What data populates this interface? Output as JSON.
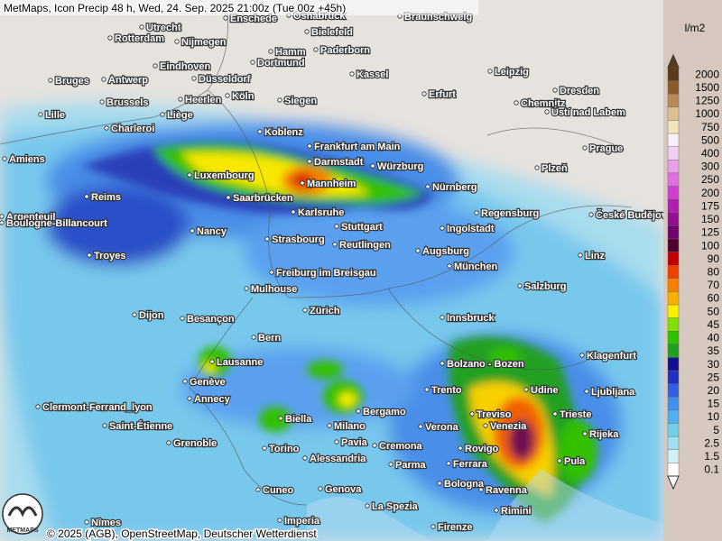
{
  "header": {
    "title": "MetMaps, Icon Precip 48 h, Wed, 24. Sep. 2025 21:00z (Tue 00z +45h)"
  },
  "footer": {
    "copyright": "© 2025 (AGB), OpenStreetMap, Deutscher Wetterdienst",
    "logo": "METMAPS"
  },
  "legend": {
    "unit": "l/m2",
    "labels": [
      "2000",
      "1500",
      "1250",
      "1000",
      "750",
      "500",
      "400",
      "300",
      "250",
      "200",
      "175",
      "150",
      "125",
      "100",
      "90",
      "80",
      "70",
      "60",
      "50",
      "45",
      "40",
      "35",
      "30",
      "25",
      "20",
      "15",
      "10",
      "5",
      "2.5",
      "1.5",
      "0.1"
    ],
    "colors": [
      "#5a3a1a",
      "#8b5a2b",
      "#b98a55",
      "#dcc090",
      "#f2e4bc",
      "#f8f0f8",
      "#f0d0f0",
      "#e8a0e8",
      "#e070e0",
      "#d040d0",
      "#b020b0",
      "#901090",
      "#700070",
      "#500030",
      "#c00000",
      "#f04000",
      "#f88000",
      "#f8b000",
      "#f8f000",
      "#80e000",
      "#30c000",
      "#20a020",
      "#101090",
      "#2030c0",
      "#3060e0",
      "#4090f0",
      "#50b0f0",
      "#70d0e8",
      "#a0e0f0",
      "#d0f0f8",
      "#ffffff"
    ]
  },
  "cities": [
    "Enschede",
    "Osnabrück",
    "Braunschweig",
    "Utrecht",
    "Rotterdam",
    "Nijmegen",
    "Bielefeld",
    "Hamm",
    "Paderborn",
    "Dortmund",
    "Eindhoven",
    "Kassel",
    "Leipzig",
    "Bruges",
    "Antwerp",
    "Düsseldorf",
    "Dresden",
    "Erfurt",
    "Brussels",
    "Heerlen",
    "Köln",
    "Siegen",
    "Chemnitz",
    "Ústí nad Labem",
    "Lille",
    "Liège",
    "Charleroi",
    "Koblenz",
    "Frankfurt am Main",
    "Prague",
    "Amiens",
    "Darmstadt",
    "Würzburg",
    "Plzeň",
    "Luxembourg",
    "Mannheim",
    "Nürnberg",
    "Reims",
    "Saarbrücken",
    "Karlsruhe",
    "Regensburg",
    "České Budějovice",
    "Argenteuil",
    "Boulogne-Billancourt",
    "Stuttgart",
    "Ingolstadt",
    "Nancy",
    "Strasbourg",
    "Reutlingen",
    "Augsburg",
    "Troyes",
    "Linz",
    "München",
    "Freiburg im Breisgau",
    "Mulhouse",
    "Salzburg",
    "Zürich",
    "Dijon",
    "Besançon",
    "Innsbruck",
    "Bern",
    "Klagenfurt",
    "Lausanne",
    "Bolzano - Bozen",
    "Genève",
    "Trento",
    "Udine",
    "Ljubljana",
    "Annecy",
    "Bergamo",
    "Treviso",
    "Trieste",
    "Clermont-Ferrand_lyon",
    "Biella",
    "Verona",
    "Venezia",
    "Milano",
    "Saint-Étienne",
    "Rijeka",
    "Pavia",
    "Cremona",
    "Grenoble",
    "Torino",
    "Rovigo",
    "Alessandria",
    "Parma",
    "Ferrara",
    "Pula",
    "Bologna",
    "Ravenna",
    "Cuneo",
    "Genova",
    "Rimini",
    "La Spezia",
    "Imperia",
    "Nîmes",
    "Firenze"
  ]
}
